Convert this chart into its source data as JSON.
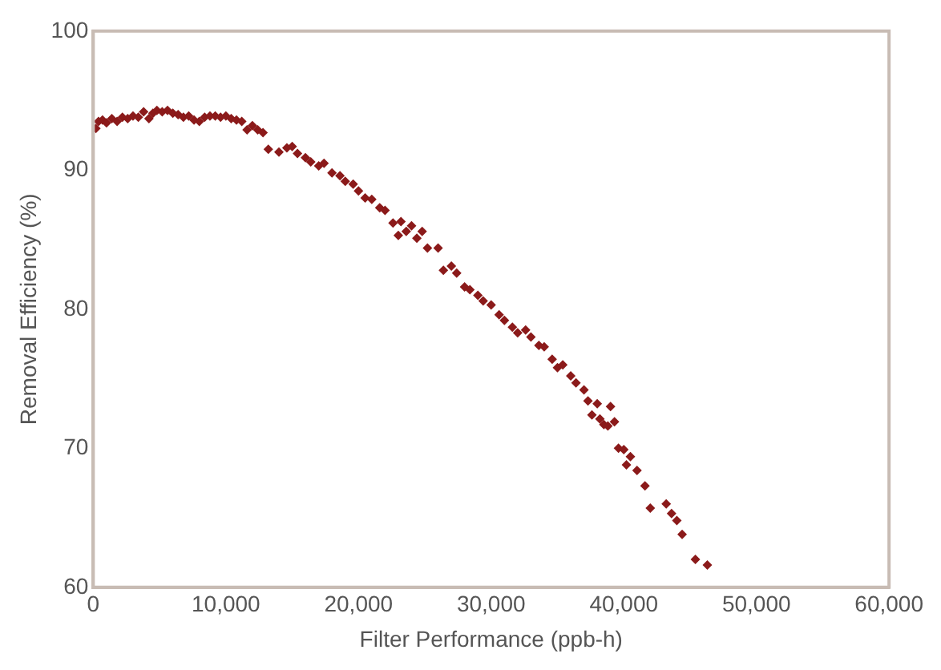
{
  "chart_data": {
    "type": "scatter",
    "xlabel": "Filter Performance (ppb-h)",
    "ylabel": "Removal Efficiency (%)",
    "color": "#8b1a1a",
    "marker": "diamond",
    "grid": false,
    "legend": false,
    "xlim": [
      0,
      60000
    ],
    "xticks": [
      {
        "value": 0,
        "label": "0"
      },
      {
        "value": 10000,
        "label": "10,000"
      },
      {
        "value": 20000,
        "label": "20,000"
      },
      {
        "value": 30000,
        "label": "30,000"
      },
      {
        "value": 40000,
        "label": "40,000"
      },
      {
        "value": 50000,
        "label": "50,000"
      },
      {
        "value": 60000,
        "label": "60,000"
      }
    ],
    "ylim": [
      60,
      100
    ],
    "yticks": [
      60,
      70,
      80,
      90,
      100
    ],
    "x": [
      200,
      400,
      700,
      1000,
      1400,
      1800,
      2200,
      2600,
      3000,
      3400,
      3800,
      4200,
      4500,
      4800,
      5200,
      5600,
      6000,
      6400,
      6800,
      7200,
      7600,
      8000,
      8400,
      8800,
      9200,
      9600,
      10000,
      10400,
      10800,
      11200,
      11600,
      12000,
      12400,
      12800,
      13200,
      14000,
      14600,
      15000,
      15400,
      16000,
      16400,
      17000,
      17400,
      18000,
      18600,
      19000,
      19600,
      20000,
      20500,
      21000,
      21600,
      22000,
      22600,
      23000,
      23200,
      23600,
      24000,
      24400,
      24800,
      25200,
      26000,
      26400,
      27000,
      27400,
      28000,
      28400,
      29000,
      29400,
      30000,
      30600,
      31000,
      31600,
      32000,
      32600,
      33000,
      33600,
      34000,
      34600,
      35000,
      35400,
      36000,
      36400,
      37000,
      37300,
      37600,
      38000,
      38200,
      38500,
      38800,
      39000,
      39300,
      39600,
      40000,
      40200,
      40500,
      41000,
      41600,
      42000,
      43200,
      43600,
      44000,
      44400,
      45400,
      46300
    ],
    "values": [
      93,
      93.5,
      93.6,
      93.4,
      93.7,
      93.5,
      93.8,
      93.7,
      93.9,
      93.8,
      94.2,
      93.7,
      94.1,
      94.3,
      94.2,
      94.3,
      94.1,
      94,
      93.8,
      93.9,
      93.6,
      93.5,
      93.8,
      93.9,
      93.9,
      93.8,
      93.9,
      93.7,
      93.6,
      93.5,
      92.9,
      93.2,
      92.9,
      92.7,
      91.5,
      91.3,
      91.6,
      91.7,
      91.2,
      90.9,
      90.6,
      90.3,
      90.5,
      89.8,
      89.6,
      89.2,
      89,
      88.5,
      88,
      87.9,
      87.3,
      87.1,
      86.2,
      85.3,
      86.3,
      85.6,
      86,
      85.1,
      85.6,
      84.4,
      84.4,
      82.8,
      83.1,
      82.6,
      81.6,
      81.4,
      81,
      80.6,
      80.3,
      79.6,
      79.2,
      78.7,
      78.3,
      78.5,
      78,
      77.4,
      77.3,
      76.4,
      75.8,
      76,
      75.2,
      74.7,
      74.2,
      73.4,
      72.4,
      73.2,
      72.1,
      71.7,
      71.6,
      73,
      71.9,
      70,
      69.9,
      68.8,
      69.4,
      68.4,
      67.3,
      65.7,
      66,
      65.3,
      64.8,
      63.8,
      62,
      61.6
    ]
  }
}
